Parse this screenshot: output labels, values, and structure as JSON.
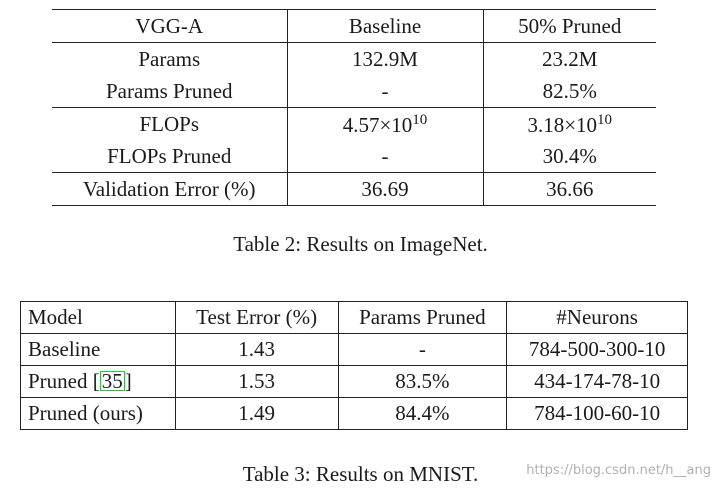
{
  "table2": {
    "headers": [
      "VGG-A",
      "Baseline",
      "50% Pruned"
    ],
    "rows": [
      {
        "label": "Params",
        "baseline": "132.9M",
        "pruned": "23.2M"
      },
      {
        "label": "Params Pruned",
        "baseline": "-",
        "pruned": "82.5%"
      },
      {
        "label": "FLOPs",
        "baseline_mant": "4.57",
        "baseline_exp": "10",
        "pruned_mant": "3.18",
        "pruned_exp": "10"
      },
      {
        "label": "FLOPs Pruned",
        "baseline": "-",
        "pruned": "30.4%"
      },
      {
        "label": "Validation Error (%)",
        "baseline": "36.69",
        "pruned": "36.66"
      }
    ],
    "times_symbol": "×",
    "base_ten": "10",
    "caption": "Table 2: Results on ImageNet."
  },
  "table3": {
    "headers": [
      "Model",
      "Test Error (%)",
      "Params Pruned",
      "#Neurons"
    ],
    "rows": [
      {
        "model": "Baseline",
        "error": "1.43",
        "pruned": "-",
        "neurons": "784-500-300-10"
      },
      {
        "model_prefix": "Pruned [",
        "citation": "35",
        "model_suffix": "]",
        "error": "1.53",
        "pruned": "83.5%",
        "neurons": "434-174-78-10"
      },
      {
        "model": "Pruned (ours)",
        "error": "1.49",
        "pruned": "84.4%",
        "neurons": "784-100-60-10"
      }
    ],
    "caption": "Table 3: Results on MNIST."
  },
  "watermark": "https://blog.csdn.net/h__ang",
  "colors": {
    "citation_box": "#33bb44",
    "text": "#1a1a1a",
    "watermark": "#969696"
  }
}
